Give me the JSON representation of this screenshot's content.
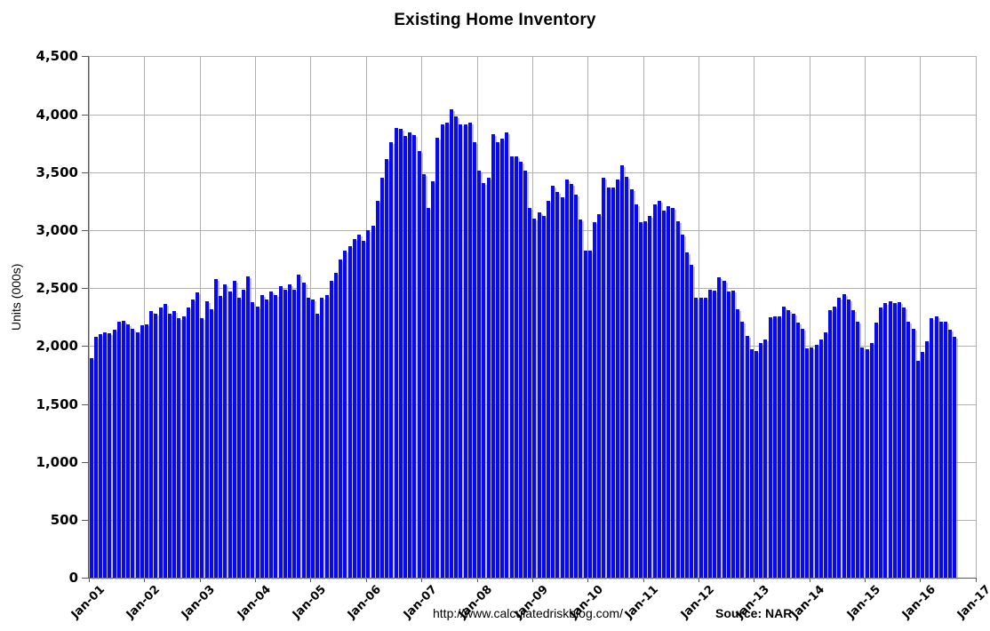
{
  "title": "Existing Home Inventory",
  "y_axis_title": "Units (000s)",
  "footer": {
    "url": "http://www.calculatedriskblog.com/",
    "source": "Source: NAR"
  },
  "chart_data": {
    "type": "bar",
    "title": "Existing Home Inventory",
    "xlabel": "",
    "ylabel": "Units (000s)",
    "unit": "thousands of homes",
    "ylim": [
      0,
      4500
    ],
    "ytick_step": 500,
    "y_tick_labels": [
      "4,500",
      "4,000",
      "3,500",
      "3,000",
      "2,500",
      "2,000",
      "1,500",
      "1,000",
      "500",
      "0"
    ],
    "x_tick_labels": [
      "Jan-01",
      "Jan-02",
      "Jan-03",
      "Jan-04",
      "Jan-05",
      "Jan-06",
      "Jan-07",
      "Jan-08",
      "Jan-09",
      "Jan-10",
      "Jan-11",
      "Jan-12",
      "Jan-13",
      "Jan-14",
      "Jan-15",
      "Jan-16",
      "Jan-17"
    ],
    "x_axis_span_months": 192,
    "start_month": "Jan-2001",
    "end_month": "Aug-2016",
    "grid": true,
    "legend": null,
    "bar_color": "#0909ef",
    "shadow_color": "#919191",
    "gridline_color": "#b1b1b1",
    "values_by_year": {
      "2001": [
        1900,
        2080,
        2100,
        2120,
        2110,
        2140,
        2210,
        2220,
        2190,
        2150,
        2120,
        2180
      ],
      "2002": [
        2190,
        2300,
        2280,
        2330,
        2360,
        2280,
        2300,
        2240,
        2260,
        2330,
        2400,
        2460
      ],
      "2003": [
        2240,
        2390,
        2320,
        2580,
        2430,
        2530,
        2470,
        2560,
        2420,
        2490,
        2600,
        2380
      ],
      "2004": [
        2340,
        2440,
        2400,
        2470,
        2440,
        2520,
        2490,
        2530,
        2490,
        2620,
        2550,
        2420
      ],
      "2005": [
        2400,
        2280,
        2420,
        2440,
        2560,
        2630,
        2750,
        2820,
        2860,
        2920,
        2960,
        2910
      ],
      "2006": [
        3000,
        3040,
        3250,
        3450,
        3610,
        3760,
        3880,
        3870,
        3810,
        3840,
        3820,
        3680
      ],
      "2007": [
        3480,
        3190,
        3420,
        3800,
        3910,
        3930,
        4040,
        3980,
        3910,
        3910,
        3930,
        3760
      ],
      "2008": [
        3510,
        3410,
        3450,
        3830,
        3760,
        3790,
        3840,
        3640,
        3640,
        3590,
        3510,
        3190
      ],
      "2009": [
        3100,
        3150,
        3120,
        3250,
        3380,
        3330,
        3280,
        3440,
        3400,
        3310,
        3090,
        2820
      ],
      "2010": [
        2820,
        3070,
        3140,
        3450,
        3370,
        3370,
        3440,
        3560,
        3460,
        3350,
        3220,
        3070
      ],
      "2011": [
        3080,
        3120,
        3220,
        3250,
        3170,
        3210,
        3190,
        3080,
        2960,
        2810,
        2700,
        2420
      ],
      "2012": [
        2420,
        2420,
        2490,
        2480,
        2590,
        2560,
        2470,
        2480,
        2320,
        2210,
        2090,
        1970
      ],
      "2013": [
        1960,
        2030,
        2060,
        2250,
        2260,
        2260,
        2340,
        2310,
        2280,
        2200,
        2150,
        1980
      ],
      "2014": [
        1990,
        2010,
        2060,
        2120,
        2310,
        2340,
        2420,
        2450,
        2400,
        2310,
        2210,
        1990
      ],
      "2015": [
        1970,
        2030,
        2200,
        2330,
        2370,
        2390,
        2370,
        2380,
        2330,
        2210,
        2150,
        1870
      ],
      "2016": [
        1950,
        2040,
        2240,
        2260,
        2210,
        2210,
        2140,
        2080
      ]
    }
  }
}
